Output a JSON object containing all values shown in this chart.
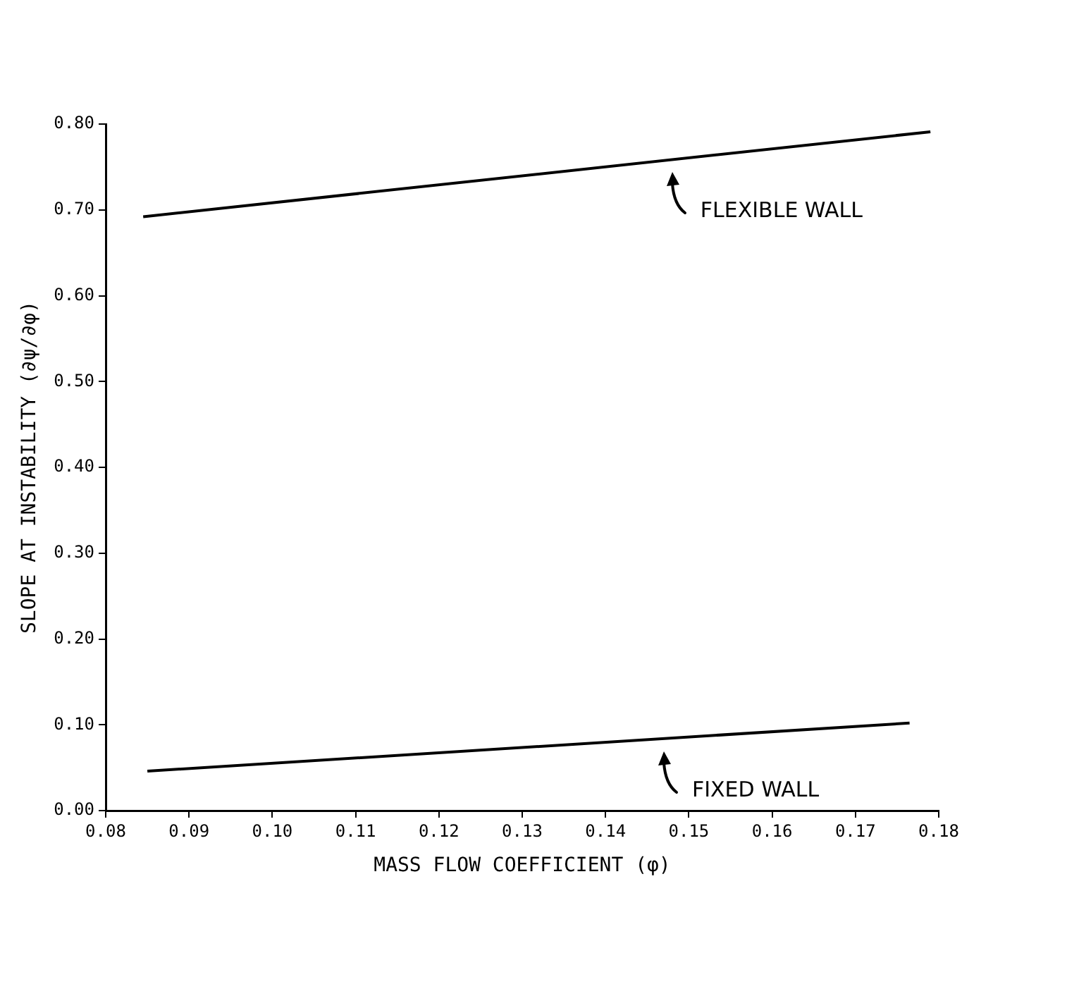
{
  "chart_data": {
    "type": "line",
    "xlabel": "MASS FLOW COEFFICIENT (φ)",
    "ylabel": "SLOPE AT INSTABILITY (∂ψ/∂φ)",
    "series": [
      {
        "color": "#000000",
        "x": [
          0.0845,
          0.179
        ],
        "values": [
          0.692,
          0.791
        ]
      },
      {
        "color": "#000000",
        "x": [
          0.085,
          0.1765
        ],
        "values": [
          0.046,
          0.102
        ]
      }
    ],
    "xlim": [
      0.08,
      0.18
    ],
    "xticks": [
      0.08,
      0.09,
      {
        "value": 0.1,
        "label": "0.10"
      },
      0.11,
      0.12,
      0.13,
      0.14,
      0.15,
      0.16,
      0.17,
      0.18
    ],
    "ylim": [
      0,
      0.8
    ],
    "yticks": [
      {
        "value": 0,
        "label": "0.00"
      },
      {
        "value": 0.1,
        "label": "0.10"
      },
      {
        "value": 0.2,
        "label": "0.20"
      },
      {
        "value": 0.3,
        "label": "0.30"
      },
      {
        "value": 0.4,
        "label": "0.40"
      },
      {
        "value": 0.5,
        "label": "0.50"
      },
      {
        "value": 0.6,
        "label": "0.60"
      },
      {
        "value": 0.7,
        "label": "0.70"
      },
      {
        "value": 0.8,
        "label": "0.80"
      }
    ],
    "grid": false,
    "legend": false,
    "marker": "none",
    "line_style": "solid",
    "annotations": [
      {
        "text": "FLEXIBLE WALL",
        "x": 0.148,
        "y": 0.759
      },
      {
        "text": "FIXED WALL",
        "x": 0.147,
        "y": 0.084
      }
    ]
  }
}
